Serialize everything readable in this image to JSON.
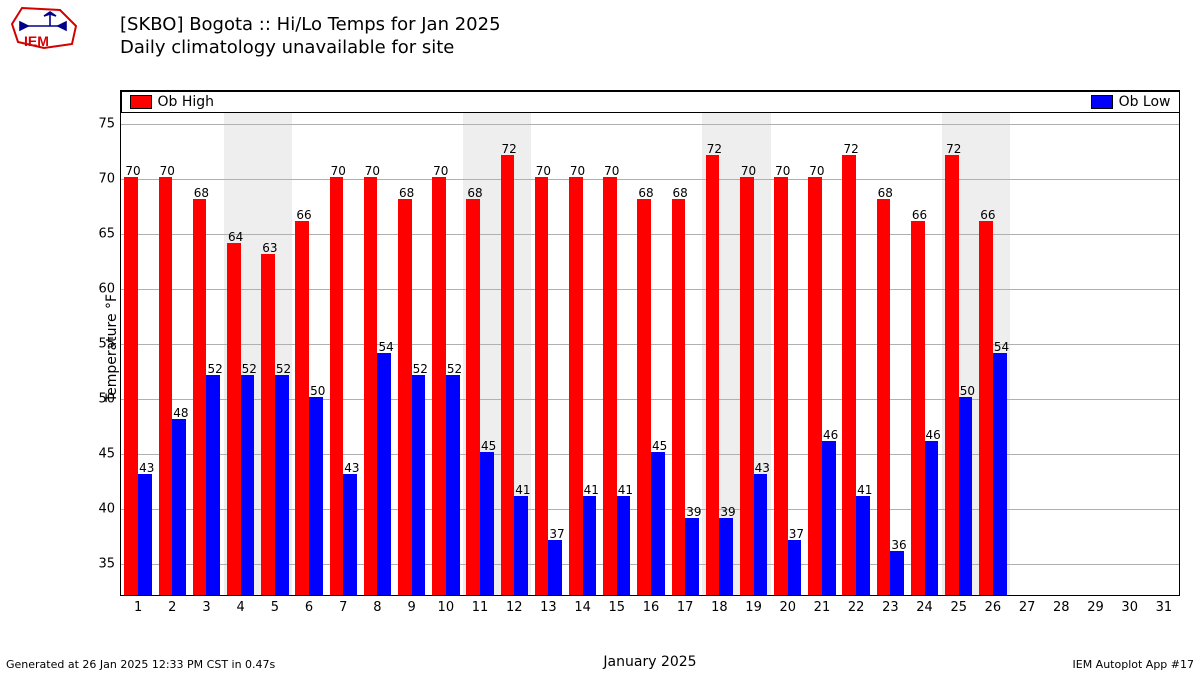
{
  "title_line1": "[SKBO] Bogota :: Hi/Lo Temps for Jan 2025",
  "title_line2": "Daily climatology unavailable for site",
  "footer_left": "Generated at 26 Jan 2025 12:33 PM CST in 0.47s",
  "footer_right": "IEM Autoplot App #17",
  "logo_text": "IEM",
  "chart": {
    "type": "bar",
    "xlabel": "January 2025",
    "ylabel": "Temperature °F",
    "background_color": "#ffffff",
    "grid_color": "#b0b0b0",
    "weekend_band_color": "#eeeeee",
    "ylim": [
      32,
      76
    ],
    "yticks": [
      35,
      40,
      45,
      50,
      55,
      60,
      65,
      70,
      75
    ],
    "days": [
      1,
      2,
      3,
      4,
      5,
      6,
      7,
      8,
      9,
      10,
      11,
      12,
      13,
      14,
      15,
      16,
      17,
      18,
      19,
      20,
      21,
      22,
      23,
      24,
      25,
      26,
      27,
      28,
      29,
      30,
      31
    ],
    "weekend_days": [
      4,
      5,
      11,
      12,
      18,
      19,
      25,
      26
    ],
    "series": {
      "high": {
        "label": "Ob High",
        "color": "#ff0000",
        "bar_width": 0.4
      },
      "low": {
        "label": "Ob Low",
        "color": "#0000ff",
        "bar_width": 0.4
      }
    },
    "data": [
      {
        "day": 1,
        "high": 70,
        "low": 43
      },
      {
        "day": 2,
        "high": 70,
        "low": 48
      },
      {
        "day": 3,
        "high": 68,
        "low": 52
      },
      {
        "day": 4,
        "high": 64,
        "low": 52
      },
      {
        "day": 5,
        "high": 63,
        "low": 52
      },
      {
        "day": 6,
        "high": 66,
        "low": 50
      },
      {
        "day": 7,
        "high": 70,
        "low": 43
      },
      {
        "day": 8,
        "high": 70,
        "low": 54
      },
      {
        "day": 9,
        "high": 68,
        "low": 52
      },
      {
        "day": 10,
        "high": 70,
        "low": 52
      },
      {
        "day": 11,
        "high": 68,
        "low": 45
      },
      {
        "day": 12,
        "high": 72,
        "low": 41
      },
      {
        "day": 13,
        "high": 70,
        "low": 37
      },
      {
        "day": 14,
        "high": 70,
        "low": 41
      },
      {
        "day": 15,
        "high": 70,
        "low": 41
      },
      {
        "day": 16,
        "high": 68,
        "low": 45
      },
      {
        "day": 17,
        "high": 68,
        "low": 39
      },
      {
        "day": 18,
        "high": 72,
        "low": 39
      },
      {
        "day": 19,
        "high": 70,
        "low": 43
      },
      {
        "day": 20,
        "high": 70,
        "low": 37
      },
      {
        "day": 21,
        "high": 70,
        "low": 46
      },
      {
        "day": 22,
        "high": 72,
        "low": 41
      },
      {
        "day": 23,
        "high": 68,
        "low": 36
      },
      {
        "day": 24,
        "high": 66,
        "low": 46
      },
      {
        "day": 25,
        "high": 72,
        "low": 50
      },
      {
        "day": 26,
        "high": 66,
        "low": 54
      }
    ],
    "legend": {
      "left_item": "high",
      "right_item": "low"
    }
  }
}
